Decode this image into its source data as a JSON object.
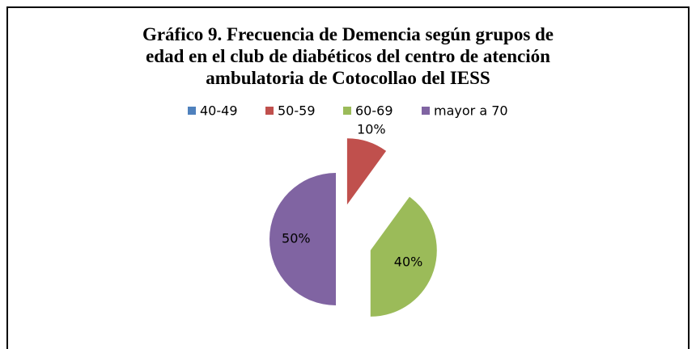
{
  "chart_data": {
    "type": "pie",
    "title": [
      "Gráfico 9. Frecuencia de Demencia según grupos de",
      "edad en el club de diabéticos del centro de atención",
      "ambulatoria de Cotocollao  del IESS"
    ],
    "categories": [
      "40-49",
      "50-59",
      "60-69",
      "mayor a 70"
    ],
    "values": [
      0,
      10,
      40,
      50
    ],
    "value_labels": [
      null,
      "10%",
      "40%",
      "50%"
    ],
    "colors": [
      "#4f81bd",
      "#c0504d",
      "#9bbb59",
      "#8064a2"
    ],
    "legend": "top"
  }
}
